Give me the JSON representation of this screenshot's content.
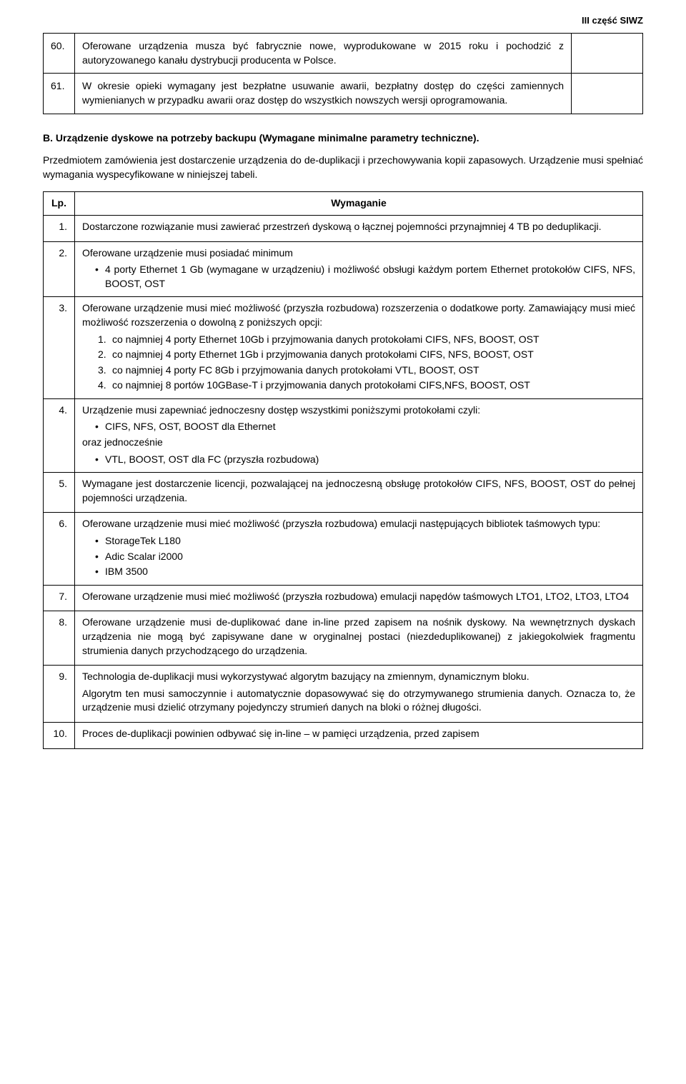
{
  "header": {
    "right_label": "III część SIWZ"
  },
  "top_table": {
    "rows": [
      {
        "num": "60.",
        "text": "Oferowane urządzenia musza być fabrycznie nowe, wyprodukowane w 2015 roku i pochodzić z autoryzowanego kanału dystrybucji producenta w Polsce."
      },
      {
        "num": "61.",
        "text": "W okresie opieki wymagany jest bezpłatne usuwanie awarii, bezpłatny dostęp do części zamiennych wymienianych w przypadku awarii oraz dostęp do wszystkich nowszych wersji oprogramowania."
      }
    ]
  },
  "section_b": {
    "heading": "B. Urządzenie dyskowe na potrzeby backupu (Wymagane minimalne parametry techniczne).",
    "intro": "Przedmiotem zamówienia jest dostarczenie urządzenia do de-duplikacji i przechowywania kopii zapasowych. Urządzenie musi spełniać wymagania wyspecyfikowane w niniejszej tabeli."
  },
  "main_table": {
    "headers": {
      "lp": "Lp.",
      "wym": "Wymaganie"
    },
    "rows": [
      {
        "num": "1.",
        "p1": "Dostarczone rozwiązanie musi zawierać przestrzeń dyskową o łącznej pojemności przynajmniej 4 TB po deduplikacji."
      },
      {
        "num": "2.",
        "p1": "Oferowane urządzenie musi posiadać minimum",
        "bullets": [
          "4 porty Ethernet 1 Gb (wymagane w urządzeniu) i możliwość obsługi każdym portem Ethernet protokołów CIFS, NFS, BOOST, OST"
        ]
      },
      {
        "num": "3.",
        "p1": "Oferowane urządzenie musi mieć możliwość (przyszła rozbudowa) rozszerzenia o dodatkowe porty. Zamawiający musi mieć możliwość rozszerzenia o dowolną z poniższych opcji:",
        "numbered": [
          "co najmniej 4 porty Ethernet 10Gb i przyjmowania danych protokołami CIFS, NFS, BOOST, OST",
          "co najmniej 4 porty Ethernet 1Gb i przyjmowania danych protokołami CIFS, NFS, BOOST, OST",
          "co najmniej 4 porty FC 8Gb i przyjmowania danych protokołami VTL, BOOST, OST",
          "co najmniej 8 portów 10GBase-T i przyjmowania danych protokołami CIFS,NFS, BOOST, OST"
        ]
      },
      {
        "num": "4.",
        "p1": "Urządzenie musi zapewniać jednoczesny dostęp wszystkimi poniższymi protokołami czyli:",
        "bullets": [
          "CIFS, NFS, OST, BOOST dla Ethernet"
        ],
        "p2": "oraz jednocześnie",
        "bullets2": [
          "VTL, BOOST, OST dla FC (przyszła rozbudowa)"
        ]
      },
      {
        "num": "5.",
        "p1": "Wymagane jest dostarczenie licencji, pozwalającej na jednoczesną obsługę protokołów CIFS, NFS, BOOST, OST do pełnej pojemności urządzenia."
      },
      {
        "num": "6.",
        "p1": "Oferowane urządzenie musi mieć możliwość (przyszła rozbudowa) emulacji następujących bibliotek taśmowych typu:",
        "bullets": [
          "StorageTek L180",
          "Adic Scalar i2000",
          "IBM 3500"
        ]
      },
      {
        "num": "7.",
        "p1": "Oferowane urządzenie musi mieć możliwość (przyszła rozbudowa) emulacji napędów taśmowych LTO1, LTO2, LTO3, LTO4"
      },
      {
        "num": "8.",
        "p1": "Oferowane urządzenie musi de-duplikować dane in-line przed zapisem na nośnik dyskowy. Na wewnętrznych dyskach urządzenia nie mogą być zapisywane dane w oryginalnej postaci (niezdeduplikowanej) z jakiegokolwiek fragmentu strumienia danych przychodzącego do urządzenia."
      },
      {
        "num": "9.",
        "p1": "Technologia de-duplikacji musi wykorzystywać algorytm bazujący na zmiennym, dynamicznym bloku.",
        "p2": "Algorytm ten musi samoczynnie i automatycznie dopasowywać się do otrzymywanego strumienia danych. Oznacza to, że urządzenie musi dzielić otrzymany pojedynczy strumień danych na bloki o różnej długości."
      },
      {
        "num": "10.",
        "p1": "Proces de-duplikacji powinien odbywać się in-line – w pamięci urządzenia, przed zapisem"
      }
    ]
  }
}
